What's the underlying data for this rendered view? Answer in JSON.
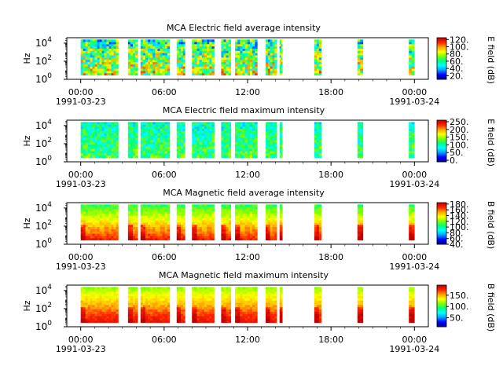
{
  "chart_data": [
    {
      "type": "heatmap",
      "title": "MCA  Electric field average intensity",
      "ylabel": "Hz",
      "colorbar_label": "E field (dB)",
      "colorbar_ticks": [
        "120.",
        "100.",
        "80.",
        "60.",
        "40.",
        "20."
      ],
      "colorbar_range": [
        10,
        125
      ],
      "colorbar_tick_values": [
        120,
        100,
        80,
        60,
        40,
        20
      ],
      "intensity_range": [
        25,
        90
      ],
      "low_freq_boost": 0
    },
    {
      "type": "heatmap",
      "title": "MCA  Electric field maximum intensity",
      "ylabel": "Hz",
      "colorbar_label": "E field (dB)",
      "colorbar_ticks": [
        "250.",
        "200.",
        "150.",
        "100.",
        "50.",
        "0."
      ],
      "colorbar_range": [
        -10,
        260
      ],
      "colorbar_tick_values": [
        250,
        200,
        150,
        100,
        50,
        0
      ],
      "intensity_range": [
        60,
        130
      ],
      "low_freq_boost": 0
    },
    {
      "type": "heatmap",
      "title": "MCA  Magnetic field average intensity",
      "ylabel": "Hz",
      "colorbar_label": "B field (dB)",
      "colorbar_ticks": [
        "180.",
        "160.",
        "140.",
        "120.",
        "100.",
        "80.",
        "60.",
        "40."
      ],
      "colorbar_range": [
        40,
        185
      ],
      "colorbar_tick_values": [
        180,
        160,
        140,
        120,
        100,
        80,
        60,
        40
      ],
      "intensity_range": [
        95,
        150
      ],
      "low_freq_boost": 1
    },
    {
      "type": "heatmap",
      "title": "MCA  Magnetic field maximum intensity",
      "ylabel": "Hz",
      "colorbar_label": "B field (dB)",
      "colorbar_ticks": [
        "150.",
        "100.",
        "50."
      ],
      "colorbar_range": [
        10,
        195
      ],
      "colorbar_tick_values": [
        150,
        100,
        50
      ],
      "intensity_range": [
        100,
        160
      ],
      "low_freq_boost": 1
    }
  ],
  "time_axis": {
    "tick_labels": [
      "00:00",
      "06:00",
      "12:00",
      "18:00",
      "00:00"
    ],
    "tick_hours": [
      0,
      6,
      12,
      18,
      24
    ],
    "date_labels": [
      "1991-03-23",
      "1991-03-24"
    ],
    "range_hours": [
      -1,
      25
    ]
  },
  "freq_axis": {
    "tick_labels": [
      "10",
      "10",
      "10"
    ],
    "tick_exponents": [
      "0",
      "2",
      "4"
    ],
    "log10_range": [
      0,
      4.6
    ],
    "data_log10_range": [
      0.45,
      4.4
    ]
  },
  "data_segments_hours": [
    [
      0,
      2.7
    ],
    [
      3.4,
      4.1
    ],
    [
      4.3,
      6.4
    ],
    [
      6.9,
      7.5
    ],
    [
      8.0,
      9.6
    ],
    [
      10.1,
      10.8
    ],
    [
      11.1,
      12.7
    ],
    [
      13.3,
      14.1
    ],
    [
      14.3,
      14.5
    ],
    [
      16.8,
      17.3
    ],
    [
      19.9,
      20.3
    ],
    [
      23.6,
      24.0
    ]
  ],
  "colors": {
    "colormap": [
      "#000090",
      "#0000ff",
      "#00a0ff",
      "#00ffff",
      "#00ff80",
      "#80ff00",
      "#ffff00",
      "#ffa000",
      "#ff2000",
      "#c00000"
    ]
  }
}
